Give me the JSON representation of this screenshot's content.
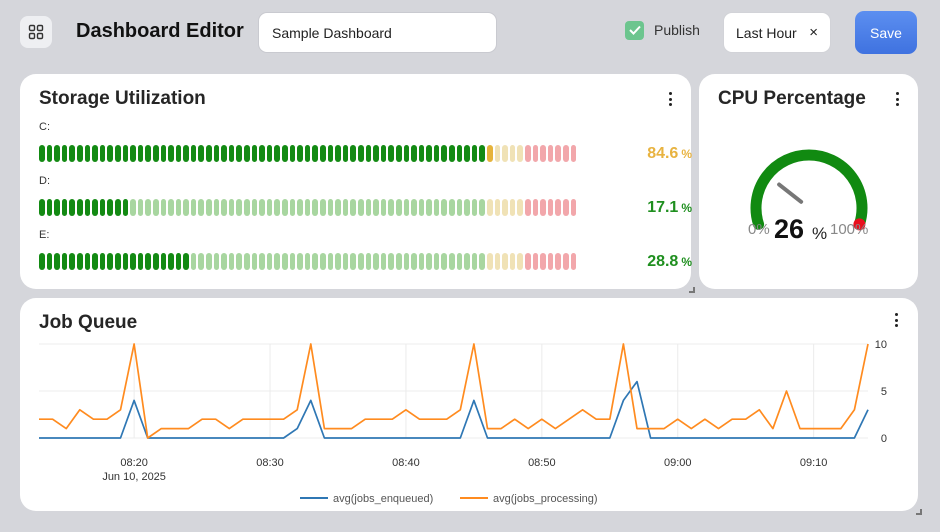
{
  "header": {
    "title": "Dashboard Editor",
    "dashboard_name": "Sample Dashboard",
    "publish_label": "Publish",
    "publish_checked": true,
    "time_range": "Last Hour",
    "clear_icon": "×",
    "save_label": "Save",
    "accent": "#4a7fe8"
  },
  "storage": {
    "title": "Storage Utilization",
    "unit": "%",
    "drives": [
      {
        "label": "C:",
        "value": "84.6",
        "percent": 84.6,
        "color": "#e8b340"
      },
      {
        "label": "D:",
        "value": "17.1",
        "percent": 17.1,
        "color": "#1f8f1f"
      },
      {
        "label": "E:",
        "value": "28.8",
        "percent": 28.8,
        "color": "#1f8f1f"
      }
    ]
  },
  "cpu": {
    "title": "CPU Percentage",
    "value": "26",
    "percent": 26,
    "unit": "%",
    "min_label": "0%",
    "max_label": "100%"
  },
  "chart_data": {
    "type": "line",
    "title": "Job Queue",
    "x": [
      "08:13",
      "08:14",
      "08:15",
      "08:16",
      "08:17",
      "08:18",
      "08:19",
      "08:20",
      "08:21",
      "08:22",
      "08:23",
      "08:24",
      "08:25",
      "08:26",
      "08:27",
      "08:28",
      "08:29",
      "08:30",
      "08:31",
      "08:32",
      "08:33",
      "08:34",
      "08:35",
      "08:36",
      "08:37",
      "08:38",
      "08:39",
      "08:40",
      "08:41",
      "08:42",
      "08:43",
      "08:44",
      "08:45",
      "08:46",
      "08:47",
      "08:48",
      "08:49",
      "08:50",
      "08:51",
      "08:52",
      "08:53",
      "08:54",
      "08:55",
      "08:56",
      "08:57",
      "08:58",
      "08:59",
      "09:00",
      "09:01",
      "09:02",
      "09:03",
      "09:04",
      "09:05",
      "09:06",
      "09:07",
      "09:08",
      "09:09",
      "09:10",
      "09:11",
      "09:12",
      "09:13",
      "09:14"
    ],
    "x_ticks": [
      "08:20",
      "08:30",
      "08:40",
      "08:50",
      "09:00",
      "09:10"
    ],
    "x_sublabel": "Jun 10, 2025",
    "y_ticks": [
      "0",
      "5",
      "10"
    ],
    "ylim": [
      0,
      10
    ],
    "series": [
      {
        "name": "avg(jobs_enqueued)",
        "color": "#2f77b4",
        "values": [
          0,
          0,
          0,
          0,
          0,
          0,
          0,
          4,
          0,
          0,
          0,
          0,
          0,
          0,
          0,
          0,
          0,
          0,
          0,
          1,
          4,
          0,
          0,
          0,
          0,
          0,
          0,
          0,
          0,
          0,
          0,
          0,
          4,
          0,
          0,
          0,
          0,
          0,
          0,
          0,
          0,
          0,
          0,
          4,
          6,
          0,
          0,
          0,
          0,
          0,
          0,
          0,
          0,
          0,
          0,
          0,
          0,
          0,
          0,
          0,
          0,
          3
        ]
      },
      {
        "name": "avg(jobs_processing)",
        "color": "#ff8b1f",
        "values": [
          2,
          2,
          1,
          3,
          2,
          2,
          3,
          10,
          0,
          1,
          1,
          1,
          2,
          2,
          1,
          2,
          2,
          2,
          2,
          3,
          10,
          1,
          1,
          1,
          2,
          2,
          2,
          3,
          2,
          2,
          2,
          3,
          10,
          1,
          1,
          2,
          1,
          2,
          1,
          2,
          3,
          2,
          2,
          10,
          1,
          1,
          1,
          2,
          1,
          2,
          1,
          2,
          2,
          3,
          1,
          5,
          1,
          1,
          1,
          1,
          3,
          10
        ]
      }
    ]
  }
}
